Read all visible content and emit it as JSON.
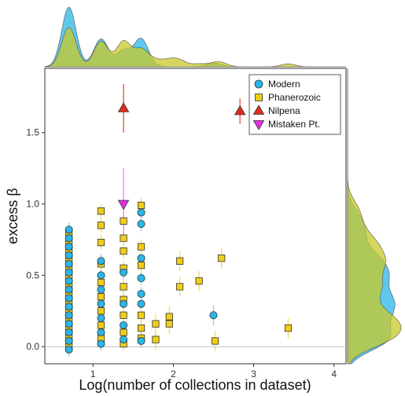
{
  "chart_data": {
    "type": "scatter",
    "xlabel": "Log(number of collections in dataset)",
    "ylabel": "excess β",
    "xlim": [
      0.4,
      4.15
    ],
    "ylim": [
      -0.12,
      1.95
    ],
    "xticks": [
      1,
      2,
      3,
      4
    ],
    "yticks": [
      0.0,
      0.5,
      1.0,
      1.5
    ],
    "xtick_labels": [
      "1",
      "2",
      "3",
      "4"
    ],
    "ytick_labels": [
      "0.0",
      "0.5",
      "1.0",
      "1.5"
    ],
    "reference_line_y": 0,
    "grid": false,
    "legend_position": "top-right",
    "marginal_densities": {
      "top": "density of x by series",
      "right": "density of y by series"
    },
    "series": [
      {
        "name": "Modern",
        "marker": "circle",
        "color": "#29b6e8",
        "points": [
          {
            "x": 0.7,
            "y": 0.82
          },
          {
            "x": 0.7,
            "y": 0.76
          },
          {
            "x": 0.7,
            "y": 0.7
          },
          {
            "x": 0.7,
            "y": 0.64
          },
          {
            "x": 0.7,
            "y": 0.58
          },
          {
            "x": 0.7,
            "y": 0.52
          },
          {
            "x": 0.7,
            "y": 0.46
          },
          {
            "x": 0.7,
            "y": 0.4
          },
          {
            "x": 0.7,
            "y": 0.34
          },
          {
            "x": 0.7,
            "y": 0.28
          },
          {
            "x": 0.7,
            "y": 0.22
          },
          {
            "x": 0.7,
            "y": 0.16
          },
          {
            "x": 0.7,
            "y": 0.1
          },
          {
            "x": 0.7,
            "y": 0.04
          },
          {
            "x": 0.7,
            "y": -0.02
          },
          {
            "x": 1.1,
            "y": 0.6
          },
          {
            "x": 1.1,
            "y": 0.5
          },
          {
            "x": 1.1,
            "y": 0.4
          },
          {
            "x": 1.1,
            "y": 0.3
          },
          {
            "x": 1.1,
            "y": 0.2
          },
          {
            "x": 1.1,
            "y": 0.1
          },
          {
            "x": 1.1,
            "y": 0.02
          },
          {
            "x": 1.38,
            "y": 0.52
          },
          {
            "x": 1.38,
            "y": 0.3
          },
          {
            "x": 1.38,
            "y": 0.15
          },
          {
            "x": 1.38,
            "y": 0.05
          },
          {
            "x": 1.6,
            "y": 0.94
          },
          {
            "x": 1.6,
            "y": 0.86
          },
          {
            "x": 1.6,
            "y": 0.62
          },
          {
            "x": 1.6,
            "y": 0.48
          },
          {
            "x": 1.6,
            "y": 0.37
          },
          {
            "x": 1.6,
            "y": 0.3
          },
          {
            "x": 1.6,
            "y": 0.04
          },
          {
            "x": 2.5,
            "y": 0.22
          }
        ]
      },
      {
        "name": "Phanerozoic",
        "marker": "square",
        "color": "#f0cd17",
        "points": [
          {
            "x": 0.7,
            "y": 0.79
          },
          {
            "x": 0.7,
            "y": 0.73
          },
          {
            "x": 0.7,
            "y": 0.67
          },
          {
            "x": 0.7,
            "y": 0.61
          },
          {
            "x": 0.7,
            "y": 0.55
          },
          {
            "x": 0.7,
            "y": 0.49
          },
          {
            "x": 0.7,
            "y": 0.43
          },
          {
            "x": 0.7,
            "y": 0.37
          },
          {
            "x": 0.7,
            "y": 0.31
          },
          {
            "x": 0.7,
            "y": 0.25
          },
          {
            "x": 0.7,
            "y": 0.19
          },
          {
            "x": 0.7,
            "y": 0.13
          },
          {
            "x": 0.7,
            "y": 0.07
          },
          {
            "x": 0.7,
            "y": 0.01
          },
          {
            "x": 1.1,
            "y": 0.95
          },
          {
            "x": 1.1,
            "y": 0.85
          },
          {
            "x": 1.1,
            "y": 0.73
          },
          {
            "x": 1.1,
            "y": 0.58
          },
          {
            "x": 1.1,
            "y": 0.45
          },
          {
            "x": 1.1,
            "y": 0.35
          },
          {
            "x": 1.1,
            "y": 0.25
          },
          {
            "x": 1.1,
            "y": 0.15
          },
          {
            "x": 1.1,
            "y": 0.06
          },
          {
            "x": 1.38,
            "y": 0.88
          },
          {
            "x": 1.38,
            "y": 0.76
          },
          {
            "x": 1.38,
            "y": 0.67
          },
          {
            "x": 1.38,
            "y": 0.55
          },
          {
            "x": 1.38,
            "y": 0.42
          },
          {
            "x": 1.38,
            "y": 0.33
          },
          {
            "x": 1.38,
            "y": 0.22
          },
          {
            "x": 1.38,
            "y": 0.1
          },
          {
            "x": 1.38,
            "y": 0.02
          },
          {
            "x": 1.6,
            "y": 0.99
          },
          {
            "x": 1.6,
            "y": 0.7
          },
          {
            "x": 1.6,
            "y": 0.57
          },
          {
            "x": 1.6,
            "y": 0.22
          },
          {
            "x": 1.6,
            "y": 0.13
          },
          {
            "x": 1.6,
            "y": 0.06
          },
          {
            "x": 1.78,
            "y": 0.16
          },
          {
            "x": 1.78,
            "y": 0.05
          },
          {
            "x": 1.95,
            "y": 0.21
          },
          {
            "x": 1.95,
            "y": 0.16
          },
          {
            "x": 2.08,
            "y": 0.6
          },
          {
            "x": 2.08,
            "y": 0.42
          },
          {
            "x": 2.32,
            "y": 0.46
          },
          {
            "x": 2.52,
            "y": 0.04
          },
          {
            "x": 2.6,
            "y": 0.62
          },
          {
            "x": 3.43,
            "y": 0.13
          }
        ]
      },
      {
        "name": "Nilpena",
        "marker": "triangle-up",
        "color": "#e02b20",
        "points": [
          {
            "x": 1.38,
            "y": 1.67
          },
          {
            "x": 2.83,
            "y": 1.65
          }
        ]
      },
      {
        "name": "Mistaken Pt.",
        "marker": "triangle-down",
        "color": "#e62ee6",
        "points": [
          {
            "x": 1.38,
            "y": 1.0
          }
        ]
      }
    ]
  }
}
